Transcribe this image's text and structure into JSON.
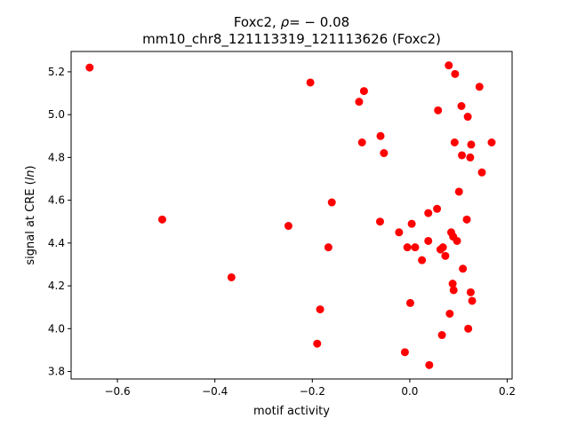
{
  "chart_data": {
    "type": "scatter",
    "title_line1_prefix": "Foxc2, ",
    "title_line1_rho": "ρ",
    "title_line1_suffix": "= − 0.08",
    "title_line2": "mm10_chr8_121113319_121113626 (Foxc2)",
    "xlabel": "motif activity",
    "ylabel_prefix": "signal at CRE (",
    "ylabel_italic": "ln",
    "ylabel_suffix": ")",
    "xlim": [
      -0.695,
      0.21
    ],
    "ylim": [
      3.765,
      5.295
    ],
    "xticks": [
      -0.6,
      -0.4,
      -0.2,
      0.0,
      0.2
    ],
    "xtick_labels": [
      "−0.6",
      "−0.4",
      "−0.2",
      "0.0",
      "0.2"
    ],
    "yticks": [
      3.8,
      4.0,
      4.2,
      4.4,
      4.6,
      4.8,
      5.0,
      5.2
    ],
    "ytick_labels": [
      "3.8",
      "4.0",
      "4.2",
      "4.4",
      "4.6",
      "4.8",
      "5.0",
      "5.2"
    ],
    "marker_color": "#ff0000",
    "points": [
      [
        -0.657,
        5.22
      ],
      [
        -0.508,
        4.51
      ],
      [
        -0.366,
        4.24
      ],
      [
        -0.249,
        4.48
      ],
      [
        -0.204,
        5.15
      ],
      [
        -0.19,
        3.93
      ],
      [
        -0.184,
        4.09
      ],
      [
        -0.167,
        4.38
      ],
      [
        -0.16,
        4.59
      ],
      [
        -0.104,
        5.06
      ],
      [
        -0.098,
        4.87
      ],
      [
        -0.094,
        5.11
      ],
      [
        -0.06,
        4.9
      ],
      [
        -0.061,
        4.5
      ],
      [
        -0.053,
        4.82
      ],
      [
        -0.022,
        4.45
      ],
      [
        -0.01,
        3.89
      ],
      [
        -0.005,
        4.38
      ],
      [
        0.001,
        4.12
      ],
      [
        0.004,
        4.49
      ],
      [
        0.011,
        4.38
      ],
      [
        0.025,
        4.32
      ],
      [
        0.038,
        4.54
      ],
      [
        0.038,
        4.41
      ],
      [
        0.04,
        3.83
      ],
      [
        0.056,
        4.56
      ],
      [
        0.058,
        5.02
      ],
      [
        0.063,
        4.37
      ],
      [
        0.066,
        3.97
      ],
      [
        0.068,
        4.38
      ],
      [
        0.073,
        4.34
      ],
      [
        0.08,
        5.23
      ],
      [
        0.082,
        4.07
      ],
      [
        0.085,
        4.45
      ],
      [
        0.088,
        4.21
      ],
      [
        0.089,
        4.43
      ],
      [
        0.09,
        4.18
      ],
      [
        0.092,
        4.87
      ],
      [
        0.093,
        5.19
      ],
      [
        0.097,
        4.41
      ],
      [
        0.101,
        4.64
      ],
      [
        0.106,
        5.04
      ],
      [
        0.107,
        4.81
      ],
      [
        0.109,
        4.28
      ],
      [
        0.117,
        4.51
      ],
      [
        0.119,
        4.99
      ],
      [
        0.12,
        4.0
      ],
      [
        0.124,
        4.8
      ],
      [
        0.125,
        4.17
      ],
      [
        0.126,
        4.86
      ],
      [
        0.128,
        4.13
      ],
      [
        0.143,
        5.13
      ],
      [
        0.148,
        4.73
      ],
      [
        0.168,
        4.87
      ]
    ]
  }
}
